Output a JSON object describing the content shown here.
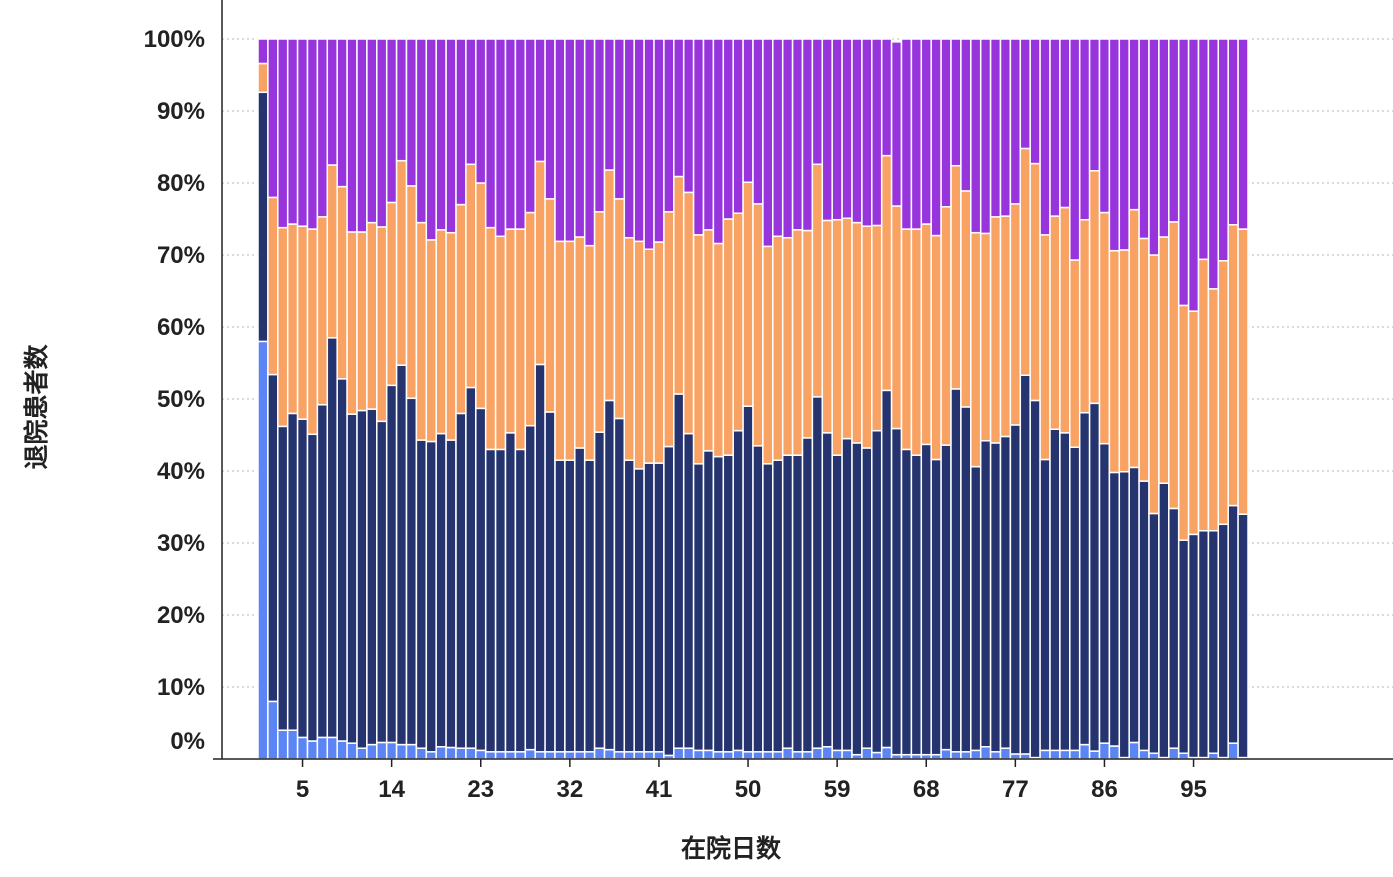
{
  "chart_data": {
    "type": "bar",
    "stacked": true,
    "normalized": true,
    "xlabel": "在院日数",
    "ylabel": "退院患者数",
    "x_tick_labels": [
      "5",
      "14",
      "23",
      "32",
      "41",
      "50",
      "59",
      "68",
      "77",
      "86",
      "95"
    ],
    "y_tick_labels": [
      "0%",
      "10%",
      "20%",
      "30%",
      "40%",
      "50%",
      "60%",
      "70%",
      "80%",
      "90%",
      "100%"
    ],
    "ylim": [
      0,
      100
    ],
    "grid": true,
    "legend": "none",
    "x_start": 1,
    "series": [
      {
        "color": "#5b84f5",
        "values": [
          58,
          8,
          4,
          4,
          3,
          2.5,
          3,
          3,
          2.5,
          2.2,
          1.5,
          2,
          2.3,
          2.3,
          2,
          2,
          1.5,
          1,
          1.7,
          1.6,
          1.5,
          1.5,
          1.2,
          1,
          1,
          1,
          1,
          1.3,
          1,
          1,
          1,
          1,
          1,
          1,
          1.5,
          1.3,
          1,
          1,
          1,
          1,
          1,
          0.5,
          1.5,
          1.5,
          1.2,
          1.2,
          1,
          1,
          1.2,
          1,
          1,
          1,
          1,
          1.5,
          1,
          1,
          1.5,
          1.7,
          1.2,
          1.2,
          0.6,
          1.5,
          0.9,
          1.6,
          0.6,
          0.6,
          0.6,
          0.6,
          0.6,
          1.3,
          1,
          1,
          1.2,
          1.7,
          1,
          1.5,
          0.7,
          0.7,
          0.2,
          1.2,
          1.2,
          1.2,
          1.2,
          2,
          1.1,
          2.2,
          1.8,
          0.2,
          2.3,
          1.2,
          0.8,
          0.2,
          1.5,
          0.8,
          0.2,
          0.2,
          0.8,
          0.2,
          2.2,
          0.2
        ]
      },
      {
        "color": "#25346e",
        "values": [
          34.6,
          45.4,
          42.2,
          44,
          44.2,
          42.6,
          46.2,
          55.5,
          50.3,
          45.7,
          46.9,
          46.6,
          44.6,
          49.6,
          52.7,
          48.1,
          42.8,
          43.1,
          43.5,
          42.7,
          46.5,
          50.1,
          47.5,
          42,
          42,
          44.3,
          42,
          45,
          53.8,
          47.2,
          40.5,
          40.5,
          42.2,
          40.5,
          43.9,
          48.5,
          46.3,
          40.5,
          39.3,
          40.1,
          40.1,
          42.9,
          49.2,
          43.7,
          39.8,
          41.6,
          41,
          41.2,
          44.4,
          48,
          42.5,
          40,
          40.5,
          40.7,
          41.2,
          43.6,
          48.8,
          43.6,
          41,
          43.3,
          43.3,
          41.7,
          44.7,
          49.6,
          45.3,
          42.4,
          41.6,
          43.1,
          41,
          42.3,
          50.4,
          47.9,
          39.4,
          42.5,
          42.9,
          43.3,
          45.7,
          52.6,
          49.6,
          40.4,
          44.6,
          44.1,
          42.1,
          46.1,
          48.3,
          41.6,
          38,
          39.7,
          38.2,
          37.4,
          33.3,
          38.1,
          33.3,
          29.6,
          31,
          31.5,
          30.9,
          32.4,
          33,
          33.8
        ]
      },
      {
        "color": "#f8a263",
        "values": [
          4,
          24.6,
          27.6,
          26.3,
          26.8,
          28.5,
          26.1,
          24,
          26.7,
          25.3,
          24.8,
          25.9,
          27,
          25.4,
          28.4,
          29.5,
          30.2,
          28,
          28.3,
          28.8,
          29,
          31,
          31.3,
          30.8,
          29.6,
          28.3,
          30.6,
          29.6,
          28.2,
          29.6,
          30.4,
          30.4,
          29.3,
          29.8,
          30.6,
          32,
          30.5,
          30.9,
          31.6,
          29.7,
          30.7,
          32.6,
          30.2,
          33.5,
          31.8,
          30.7,
          29.6,
          32.8,
          30.2,
          31.1,
          33.6,
          30.2,
          31.1,
          30.2,
          31.3,
          28.8,
          32.3,
          29.5,
          32.7,
          30.6,
          30.6,
          30.8,
          28.5,
          32.6,
          30.9,
          30.6,
          31.4,
          30.6,
          31.1,
          33.1,
          31,
          30,
          32.5,
          28.8,
          31.4,
          30.6,
          30.7,
          31.5,
          32.9,
          31.2,
          29.6,
          31.3,
          26,
          26.8,
          32.3,
          32.1,
          30.8,
          30.8,
          35.8,
          33.7,
          35.9,
          34.2,
          39.8,
          32.6,
          31,
          37.7,
          33.6,
          36.6,
          39,
          39.6
        ]
      },
      {
        "color": "#9734dc",
        "values": [
          3.4,
          22,
          26.2,
          25.7,
          26,
          26.4,
          24.7,
          17.5,
          20.5,
          26.8,
          26.8,
          25.5,
          26.1,
          22.7,
          16.9,
          20.4,
          25.5,
          27.9,
          26.5,
          26.9,
          23,
          17.4,
          20,
          26.2,
          27.4,
          26.4,
          26.4,
          24.1,
          17,
          22.2,
          28.1,
          28.1,
          27.5,
          28.7,
          24,
          18.2,
          22.2,
          27.6,
          28.1,
          29.2,
          28.2,
          24,
          19.1,
          21.3,
          27.2,
          26.5,
          28.4,
          25,
          24.2,
          19.9,
          22.9,
          28.8,
          27.4,
          27.6,
          26.5,
          26.6,
          17.4,
          25.2,
          25.1,
          24.9,
          25.5,
          26,
          26.3,
          16.3,
          22.8,
          26.4,
          26.4,
          25.7,
          27.3,
          23.6,
          17.6,
          21.1,
          26.9,
          27,
          24.7,
          24.6,
          22.9,
          15.2,
          17.3,
          27.2,
          24.6,
          23.4,
          30.7,
          25.1,
          18.4,
          24.1,
          29.4,
          29.3,
          25.8,
          28.2,
          30.8,
          27.8,
          37.4,
          38.7,
          37.8,
          30.6,
          35.7,
          30.8,
          25.8,
          26.4
        ]
      }
    ]
  }
}
